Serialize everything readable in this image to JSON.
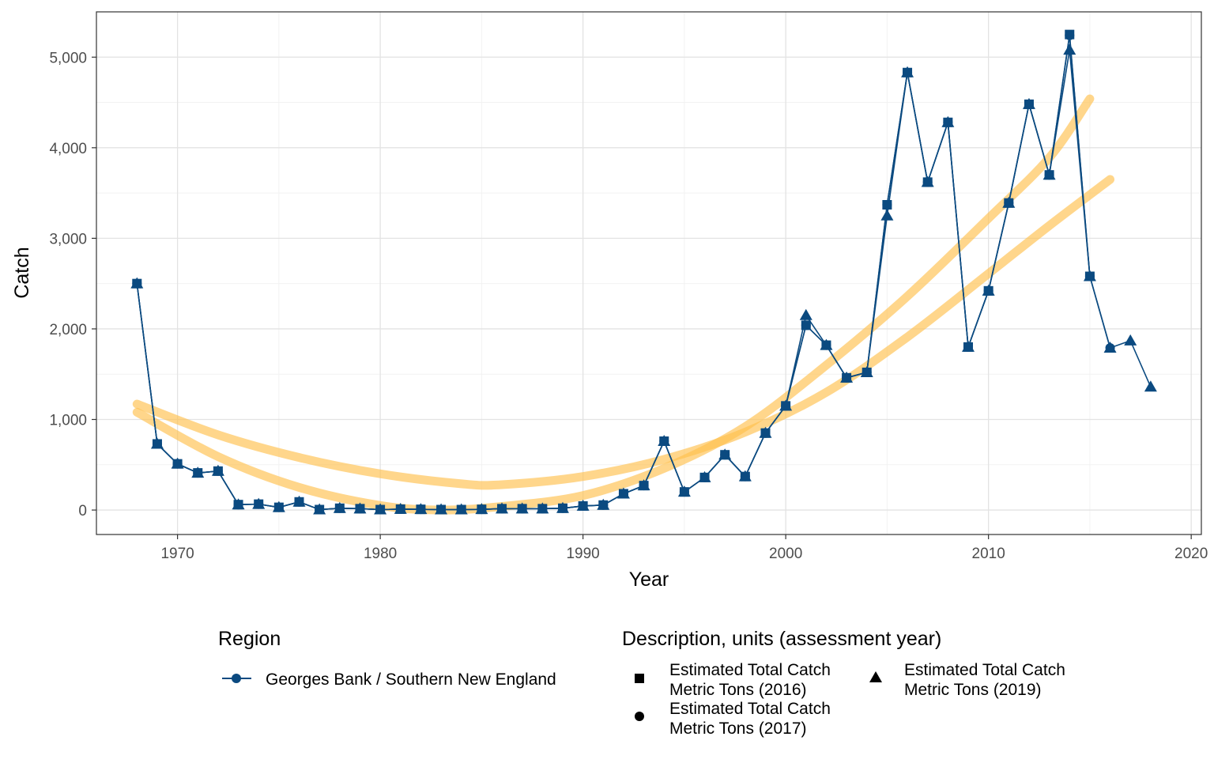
{
  "chart_data": {
    "type": "line",
    "title": "",
    "xlabel": "Year",
    "ylabel": "Catch",
    "xlim": [
      1966,
      2020.5
    ],
    "ylim": [
      -270,
      5500
    ],
    "x_ticks": [
      1970,
      1980,
      1990,
      2000,
      2010,
      2020
    ],
    "x_tick_labels": [
      "1970",
      "1980",
      "1990",
      "2000",
      "2010",
      "2020"
    ],
    "y_ticks": [
      0,
      1000,
      2000,
      3000,
      4000,
      5000
    ],
    "y_tick_labels": [
      "0",
      "1,000",
      "2,000",
      "3,000",
      "4,000",
      "5,000"
    ],
    "grid": true,
    "legend_position": "bottom",
    "colors": {
      "series": "#0b4a80",
      "trend": "#ffc04d"
    },
    "region_legend": {
      "title": "Region",
      "items": [
        {
          "label": "Georges Bank / Southern New England"
        }
      ]
    },
    "shape_legend": {
      "title": "Description, units (assessment year)",
      "items": [
        {
          "shape": "square",
          "line1": "Estimated Total Catch",
          "line2": "Metric Tons (2016)"
        },
        {
          "shape": "circle",
          "line1": "Estimated Total Catch",
          "line2": "Metric Tons (2017)"
        },
        {
          "shape": "triangle",
          "line1": "Estimated Total Catch",
          "line2": "Metric Tons (2019)"
        }
      ]
    },
    "series": [
      {
        "name": "Estimated Total Catch Metric Tons (2016)",
        "shape": "square",
        "points": [
          [
            1968,
            2500
          ],
          [
            1969,
            730
          ],
          [
            1970,
            510
          ],
          [
            1971,
            410
          ],
          [
            1972,
            430
          ],
          [
            1973,
            60
          ],
          [
            1974,
            65
          ],
          [
            1975,
            30
          ],
          [
            1976,
            90
          ],
          [
            1977,
            5
          ],
          [
            1978,
            20
          ],
          [
            1979,
            15
          ],
          [
            1980,
            5
          ],
          [
            1981,
            10
          ],
          [
            1982,
            8
          ],
          [
            1983,
            5
          ],
          [
            1984,
            5
          ],
          [
            1985,
            8
          ],
          [
            1986,
            15
          ],
          [
            1987,
            15
          ],
          [
            1988,
            15
          ],
          [
            1989,
            20
          ],
          [
            1990,
            45
          ],
          [
            1991,
            55
          ],
          [
            1992,
            180
          ],
          [
            1993,
            270
          ],
          [
            1994,
            760
          ],
          [
            1995,
            200
          ],
          [
            1996,
            360
          ],
          [
            1997,
            610
          ],
          [
            1998,
            370
          ],
          [
            1999,
            850
          ],
          [
            2000,
            1150
          ],
          [
            2001,
            2040
          ],
          [
            2002,
            1820
          ],
          [
            2003,
            1460
          ],
          [
            2004,
            1520
          ],
          [
            2005,
            3370
          ],
          [
            2006,
            4830
          ],
          [
            2007,
            3620
          ],
          [
            2008,
            4280
          ],
          [
            2009,
            1800
          ],
          [
            2010,
            2420
          ],
          [
            2011,
            3390
          ],
          [
            2012,
            4480
          ],
          [
            2013,
            3700
          ],
          [
            2014,
            5250
          ],
          [
            2015,
            2580
          ]
        ]
      },
      {
        "name": "Estimated Total Catch Metric Tons (2017)",
        "shape": "circle",
        "points": [
          [
            1968,
            2500
          ],
          [
            1969,
            730
          ],
          [
            1970,
            510
          ],
          [
            1971,
            410
          ],
          [
            1972,
            430
          ],
          [
            1973,
            60
          ],
          [
            1974,
            65
          ],
          [
            1975,
            30
          ],
          [
            1976,
            90
          ],
          [
            1977,
            5
          ],
          [
            1978,
            20
          ],
          [
            1979,
            15
          ],
          [
            1980,
            5
          ],
          [
            1981,
            10
          ],
          [
            1982,
            8
          ],
          [
            1983,
            5
          ],
          [
            1984,
            5
          ],
          [
            1985,
            8
          ],
          [
            1986,
            15
          ],
          [
            1987,
            15
          ],
          [
            1988,
            15
          ],
          [
            1989,
            20
          ],
          [
            1990,
            45
          ],
          [
            1991,
            55
          ],
          [
            1992,
            180
          ],
          [
            1993,
            270
          ],
          [
            1994,
            760
          ],
          [
            1995,
            200
          ],
          [
            1996,
            360
          ],
          [
            1997,
            610
          ],
          [
            1998,
            370
          ],
          [
            1999,
            850
          ],
          [
            2000,
            1150
          ],
          [
            2001,
            2040
          ],
          [
            2002,
            1820
          ],
          [
            2003,
            1460
          ],
          [
            2004,
            1520
          ],
          [
            2005,
            3370
          ],
          [
            2006,
            4830
          ],
          [
            2007,
            3620
          ],
          [
            2008,
            4280
          ],
          [
            2009,
            1800
          ],
          [
            2010,
            2420
          ],
          [
            2011,
            3390
          ],
          [
            2012,
            4480
          ],
          [
            2013,
            3700
          ],
          [
            2014,
            5240
          ],
          [
            2015,
            2580
          ],
          [
            2016,
            1790
          ]
        ]
      },
      {
        "name": "Estimated Total Catch Metric Tons (2019)",
        "shape": "triangle",
        "points": [
          [
            1968,
            2500
          ],
          [
            1969,
            730
          ],
          [
            1970,
            510
          ],
          [
            1971,
            410
          ],
          [
            1972,
            430
          ],
          [
            1973,
            60
          ],
          [
            1974,
            65
          ],
          [
            1975,
            30
          ],
          [
            1976,
            90
          ],
          [
            1977,
            5
          ],
          [
            1978,
            20
          ],
          [
            1979,
            15
          ],
          [
            1980,
            5
          ],
          [
            1981,
            10
          ],
          [
            1982,
            8
          ],
          [
            1983,
            5
          ],
          [
            1984,
            5
          ],
          [
            1985,
            8
          ],
          [
            1986,
            15
          ],
          [
            1987,
            15
          ],
          [
            1988,
            15
          ],
          [
            1989,
            20
          ],
          [
            1990,
            45
          ],
          [
            1991,
            55
          ],
          [
            1992,
            180
          ],
          [
            1993,
            270
          ],
          [
            1994,
            760
          ],
          [
            1995,
            200
          ],
          [
            1996,
            360
          ],
          [
            1997,
            610
          ],
          [
            1998,
            370
          ],
          [
            1999,
            850
          ],
          [
            2000,
            1150
          ],
          [
            2001,
            2150
          ],
          [
            2002,
            1820
          ],
          [
            2003,
            1460
          ],
          [
            2004,
            1520
          ],
          [
            2005,
            3250
          ],
          [
            2006,
            4830
          ],
          [
            2007,
            3620
          ],
          [
            2008,
            4280
          ],
          [
            2009,
            1800
          ],
          [
            2010,
            2420
          ],
          [
            2011,
            3390
          ],
          [
            2012,
            4480
          ],
          [
            2013,
            3700
          ],
          [
            2014,
            5080
          ],
          [
            2015,
            2580
          ],
          [
            2016,
            1790
          ],
          [
            2017,
            1870
          ],
          [
            2018,
            1360
          ]
        ]
      }
    ],
    "trend_lines": [
      {
        "points": [
          [
            1968,
            1170
          ],
          [
            1972,
            830
          ],
          [
            1976,
            580
          ],
          [
            1980,
            400
          ],
          [
            1984,
            290
          ],
          [
            1986,
            280
          ],
          [
            1990,
            370
          ],
          [
            1994,
            560
          ],
          [
            1998,
            860
          ],
          [
            2002,
            1300
          ],
          [
            2006,
            1910
          ],
          [
            2010,
            2610
          ],
          [
            2013,
            3140
          ],
          [
            2016,
            3650
          ]
        ]
      },
      {
        "points": [
          [
            1968,
            1080
          ],
          [
            1972,
            590
          ],
          [
            1976,
            250
          ],
          [
            1980,
            50
          ],
          [
            1983,
            0
          ],
          [
            1986,
            40
          ],
          [
            1990,
            160
          ],
          [
            1994,
            460
          ],
          [
            1998,
            920
          ],
          [
            2002,
            1600
          ],
          [
            2006,
            2360
          ],
          [
            2010,
            3220
          ],
          [
            2013,
            3890
          ],
          [
            2015,
            4540
          ]
        ]
      }
    ]
  }
}
